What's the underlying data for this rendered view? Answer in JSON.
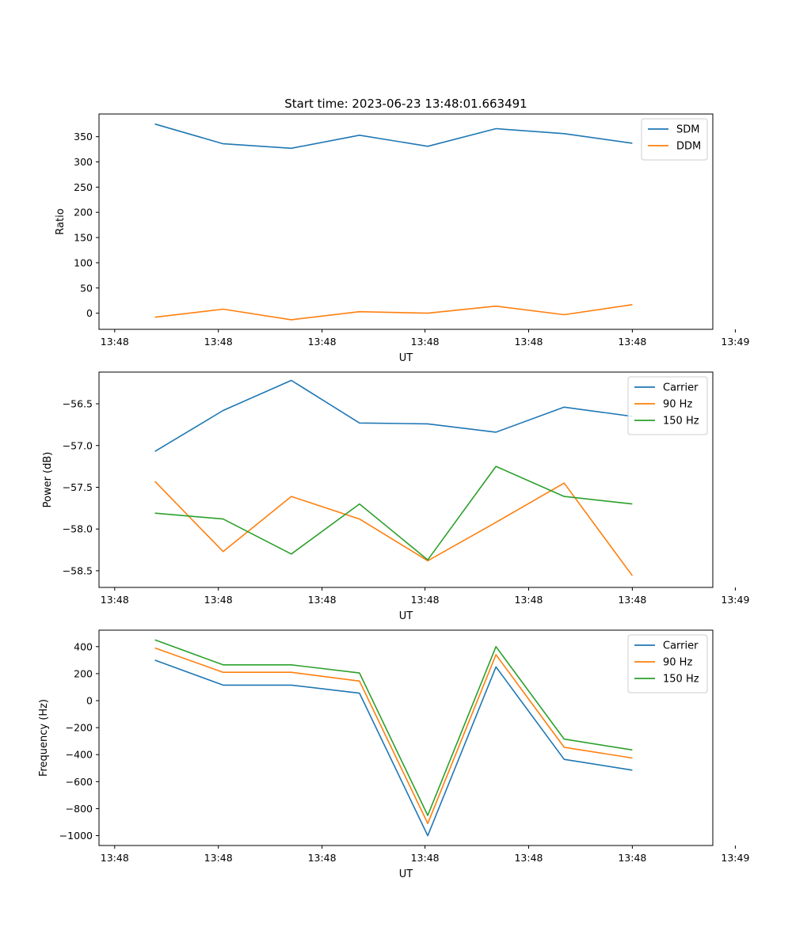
{
  "figure": {
    "title": "Start time: 2023-06-23 13:48:01.663491"
  },
  "chart_data": [
    {
      "type": "line",
      "title": "Start time: 2023-06-23 13:48:01.663491",
      "xlabel": "UT",
      "ylabel": "Ratio",
      "x": [
        1,
        2,
        3,
        4,
        5,
        6,
        7,
        8
      ],
      "xlim": [
        0.18,
        9.18
      ],
      "x_ticks": [
        0.41,
        1.93,
        3.45,
        4.96,
        6.48,
        8.0,
        9.51
      ],
      "x_tick_labels": [
        "13:48",
        "13:48",
        "13:48",
        "13:48",
        "13:48",
        "13:48",
        "13:49"
      ],
      "ylim": [
        -32,
        395
      ],
      "y_ticks": [
        0,
        50,
        100,
        150,
        200,
        250,
        300,
        350
      ],
      "y_tick_labels": [
        "0",
        "50",
        "100",
        "150",
        "200",
        "250",
        "300",
        "350"
      ],
      "legend_position": "top-right",
      "grid": false,
      "series": [
        {
          "name": "SDM",
          "color": "#1f77b4",
          "values": [
            375,
            336,
            327,
            353,
            331,
            366,
            356,
            337
          ]
        },
        {
          "name": "DDM",
          "color": "#ff7f0e",
          "values": [
            -8,
            8,
            -13,
            3,
            0,
            14,
            -3,
            17
          ]
        }
      ]
    },
    {
      "type": "line",
      "xlabel": "UT",
      "ylabel": "Power (dB)",
      "x": [
        1,
        2,
        3,
        4,
        5,
        6,
        7,
        8
      ],
      "xlim": [
        0.18,
        9.18
      ],
      "x_ticks": [
        0.41,
        1.93,
        3.45,
        4.96,
        6.48,
        8.0,
        9.51
      ],
      "x_tick_labels": [
        "13:48",
        "13:48",
        "13:48",
        "13:48",
        "13:48",
        "13:48",
        "13:49"
      ],
      "ylim": [
        -58.7,
        -56.12
      ],
      "y_ticks": [
        -56.5,
        -57.0,
        -57.5,
        -58.0,
        -58.5
      ],
      "y_tick_labels": [
        "−56.5",
        "−57.0",
        "−57.5",
        "−58.0",
        "−58.5"
      ],
      "legend_position": "top-right",
      "grid": false,
      "series": [
        {
          "name": "Carrier",
          "color": "#1f77b4",
          "values": [
            -57.07,
            -56.58,
            -56.22,
            -56.73,
            -56.74,
            -56.84,
            -56.54,
            -56.65
          ]
        },
        {
          "name": "90 Hz",
          "color": "#ff7f0e",
          "values": [
            -57.43,
            -58.27,
            -57.61,
            -57.88,
            -58.38,
            -57.92,
            -57.45,
            -58.56
          ]
        },
        {
          "name": "150 Hz",
          "color": "#2ca02c",
          "values": [
            -57.81,
            -57.88,
            -58.3,
            -57.7,
            -58.37,
            -57.25,
            -57.61,
            -57.7
          ]
        }
      ]
    },
    {
      "type": "line",
      "xlabel": "UT",
      "ylabel": "Frequency (Hz)",
      "x": [
        1,
        2,
        3,
        4,
        5,
        6,
        7,
        8
      ],
      "xlim": [
        0.18,
        9.18
      ],
      "x_ticks": [
        0.41,
        1.93,
        3.45,
        4.96,
        6.48,
        8.0,
        9.51
      ],
      "x_tick_labels": [
        "13:48",
        "13:48",
        "13:48",
        "13:48",
        "13:48",
        "13:48",
        "13:49"
      ],
      "ylim": [
        -1073,
        522
      ],
      "y_ticks": [
        400,
        200,
        0,
        -200,
        -400,
        -600,
        -800,
        -1000
      ],
      "y_tick_labels": [
        "400",
        "200",
        "0",
        "−200",
        "−400",
        "−600",
        "−800",
        "−1000"
      ],
      "legend_position": "top-right",
      "grid": false,
      "series": [
        {
          "name": "Carrier",
          "color": "#1f77b4",
          "values": [
            300,
            115,
            115,
            55,
            -1000,
            250,
            -435,
            -515
          ]
        },
        {
          "name": "90 Hz",
          "color": "#ff7f0e",
          "values": [
            390,
            210,
            210,
            145,
            -910,
            340,
            -345,
            -425
          ]
        },
        {
          "name": "150 Hz",
          "color": "#2ca02c",
          "values": [
            450,
            265,
            265,
            205,
            -850,
            400,
            -285,
            -365
          ]
        }
      ]
    }
  ]
}
